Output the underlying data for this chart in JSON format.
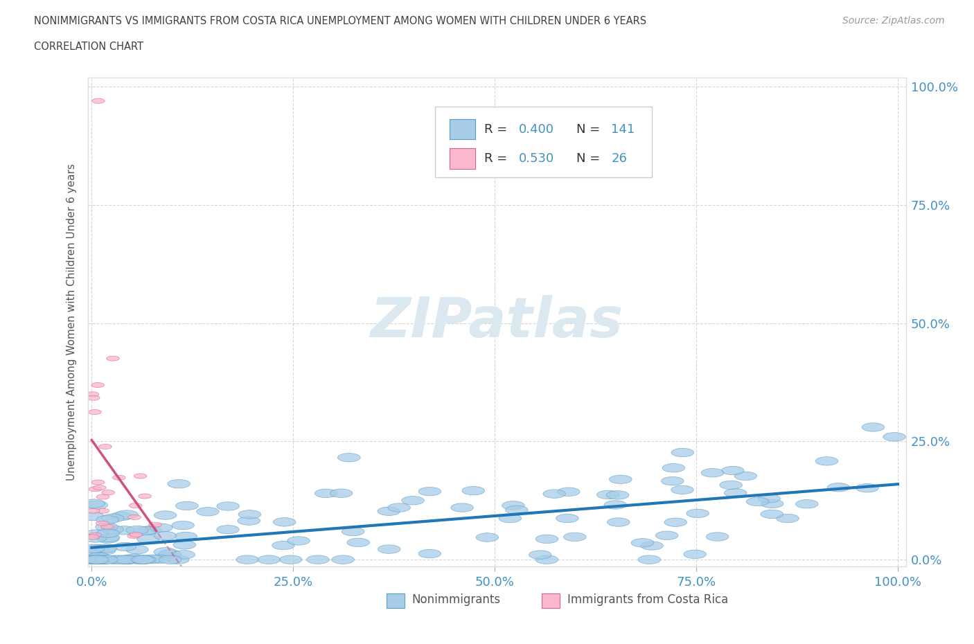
{
  "title_line1": "NONIMMIGRANTS VS IMMIGRANTS FROM COSTA RICA UNEMPLOYMENT AMONG WOMEN WITH CHILDREN UNDER 6 YEARS",
  "title_line2": "CORRELATION CHART",
  "source_text": "Source: ZipAtlas.com",
  "ylabel": "Unemployment Among Women with Children Under 6 years",
  "nonimmigrant_R": 0.4,
  "nonimmigrant_N": 141,
  "immigrant_R": 0.53,
  "immigrant_N": 26,
  "blue_color": "#a8cde8",
  "blue_edge": "#5a9dc8",
  "blue_line": "#2176b5",
  "pink_color": "#f9b8cb",
  "pink_edge": "#e0608a",
  "pink_line": "#d05080",
  "legend_R_color": "#4292c6",
  "watermark": "ZIPatlas",
  "watermark_color": "#dce8f0",
  "title_color": "#404040",
  "axis_label_color": "#555555",
  "tick_color": "#4292c6",
  "grid_color": "#cccccc",
  "background_color": "#ffffff",
  "seed": 99
}
